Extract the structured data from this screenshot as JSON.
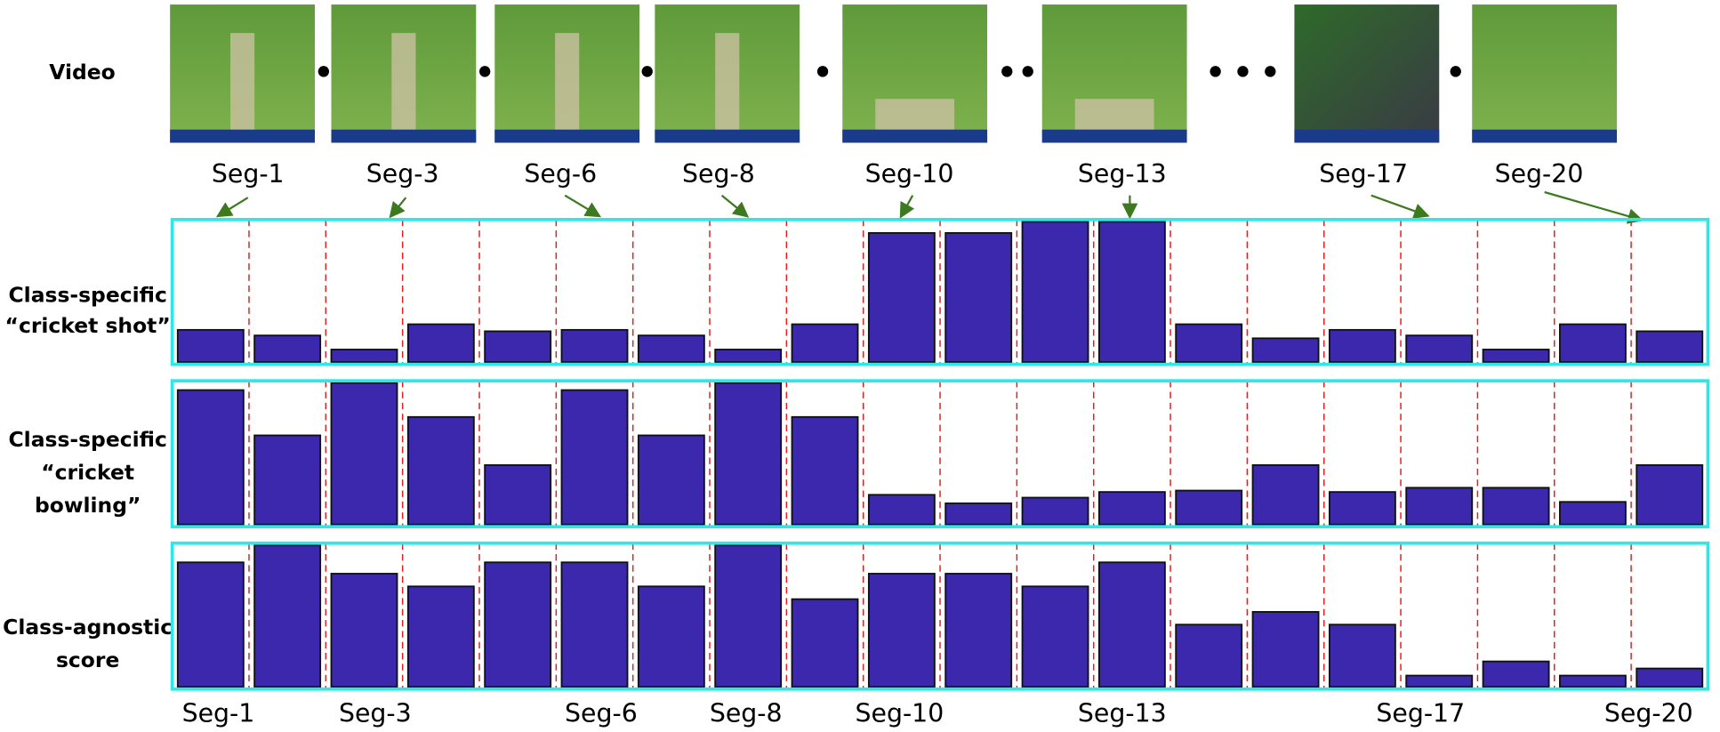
{
  "video_row": {
    "label": "Video",
    "segment_labels": [
      "Seg-1",
      "Seg-3",
      "Seg-6",
      "Seg-8",
      "Seg-10",
      "Seg-13",
      "Seg-17",
      "Seg-20"
    ]
  },
  "bottom_labels": [
    "Seg-1",
    "Seg-3",
    "Seg-6",
    "Seg-8",
    "Seg-10",
    "Seg-13",
    "Seg-17",
    "Seg-20"
  ],
  "chart_data": [
    {
      "type": "bar",
      "title": [
        "Class-specific",
        "“cricket shot”"
      ],
      "color": "#3b28ad",
      "ylim": [
        0,
        100
      ],
      "values": [
        23,
        19,
        9,
        27,
        22,
        23,
        19,
        9,
        27,
        92,
        92,
        100,
        100,
        27,
        17,
        23,
        19,
        9,
        27,
        22
      ]
    },
    {
      "type": "bar",
      "title": [
        "Class-specific",
        "“cricket",
        "bowling”"
      ],
      "color": "#3b28ad",
      "ylim": [
        0,
        100
      ],
      "values": [
        95,
        63,
        100,
        76,
        42,
        95,
        63,
        100,
        76,
        21,
        15,
        19,
        23,
        24,
        42,
        23,
        26,
        26,
        16,
        42
      ]
    },
    {
      "type": "bar",
      "title": [
        "Class-agnostic",
        "score"
      ],
      "color": "#3b28ad",
      "ylim": [
        0,
        100
      ],
      "values": [
        88,
        100,
        80,
        71,
        88,
        88,
        71,
        100,
        62,
        80,
        80,
        71,
        88,
        44,
        53,
        44,
        8,
        18,
        8,
        13
      ]
    }
  ]
}
